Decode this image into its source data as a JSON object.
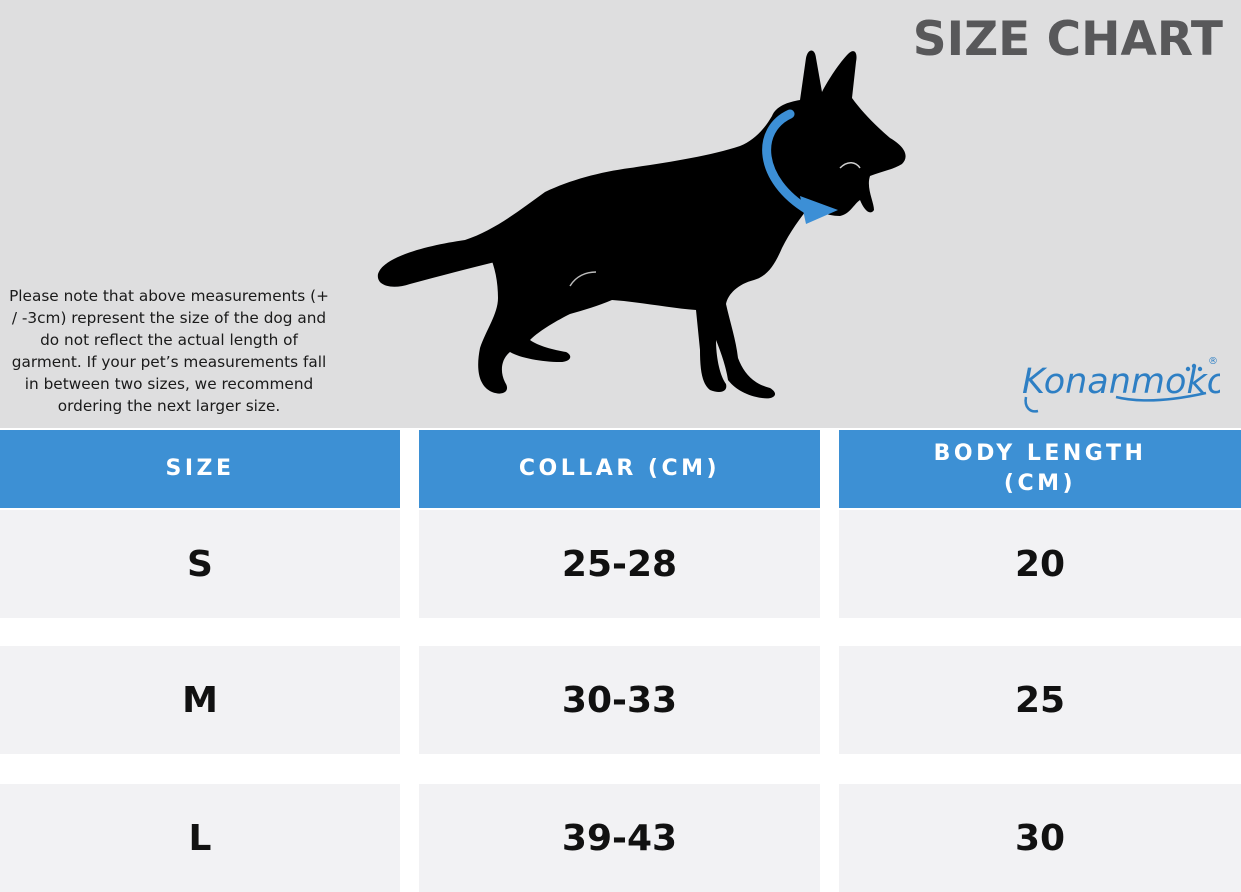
{
  "header": {
    "title": "SIZE CHART",
    "note": "Please note that above measurements (+ / -3cm) represent the size of the dog and do not reflect the actual length of garment.  If your pet’s measurements fall in between two sizes, we recommend ordering the next larger size.",
    "brand": "Konanmoko",
    "brand_mark": "®"
  },
  "colors": {
    "hero_background": "#dededf",
    "header_blue": "#3d90d4",
    "row_background": "#f2f2f4",
    "title_gray": "#58585a",
    "arrow_blue": "#3c8fd6"
  },
  "table": {
    "columns": [
      "SIZE",
      "COLLAR (CM)",
      "BODY LENGTH\n(CM)"
    ],
    "column_lines": {
      "size": "SIZE",
      "collar": "COLLAR (CM)",
      "body_line1": "BODY LENGTH",
      "body_line2": "(CM)"
    },
    "rows": [
      {
        "size": "S",
        "collar": "25-28",
        "body": "20"
      },
      {
        "size": "M",
        "collar": "30-33",
        "body": "25"
      },
      {
        "size": "L",
        "collar": "39-43",
        "body": "30"
      }
    ]
  },
  "icons": [
    "dog-silhouette-icon",
    "collar-arrow-icon",
    "paw-icon"
  ]
}
